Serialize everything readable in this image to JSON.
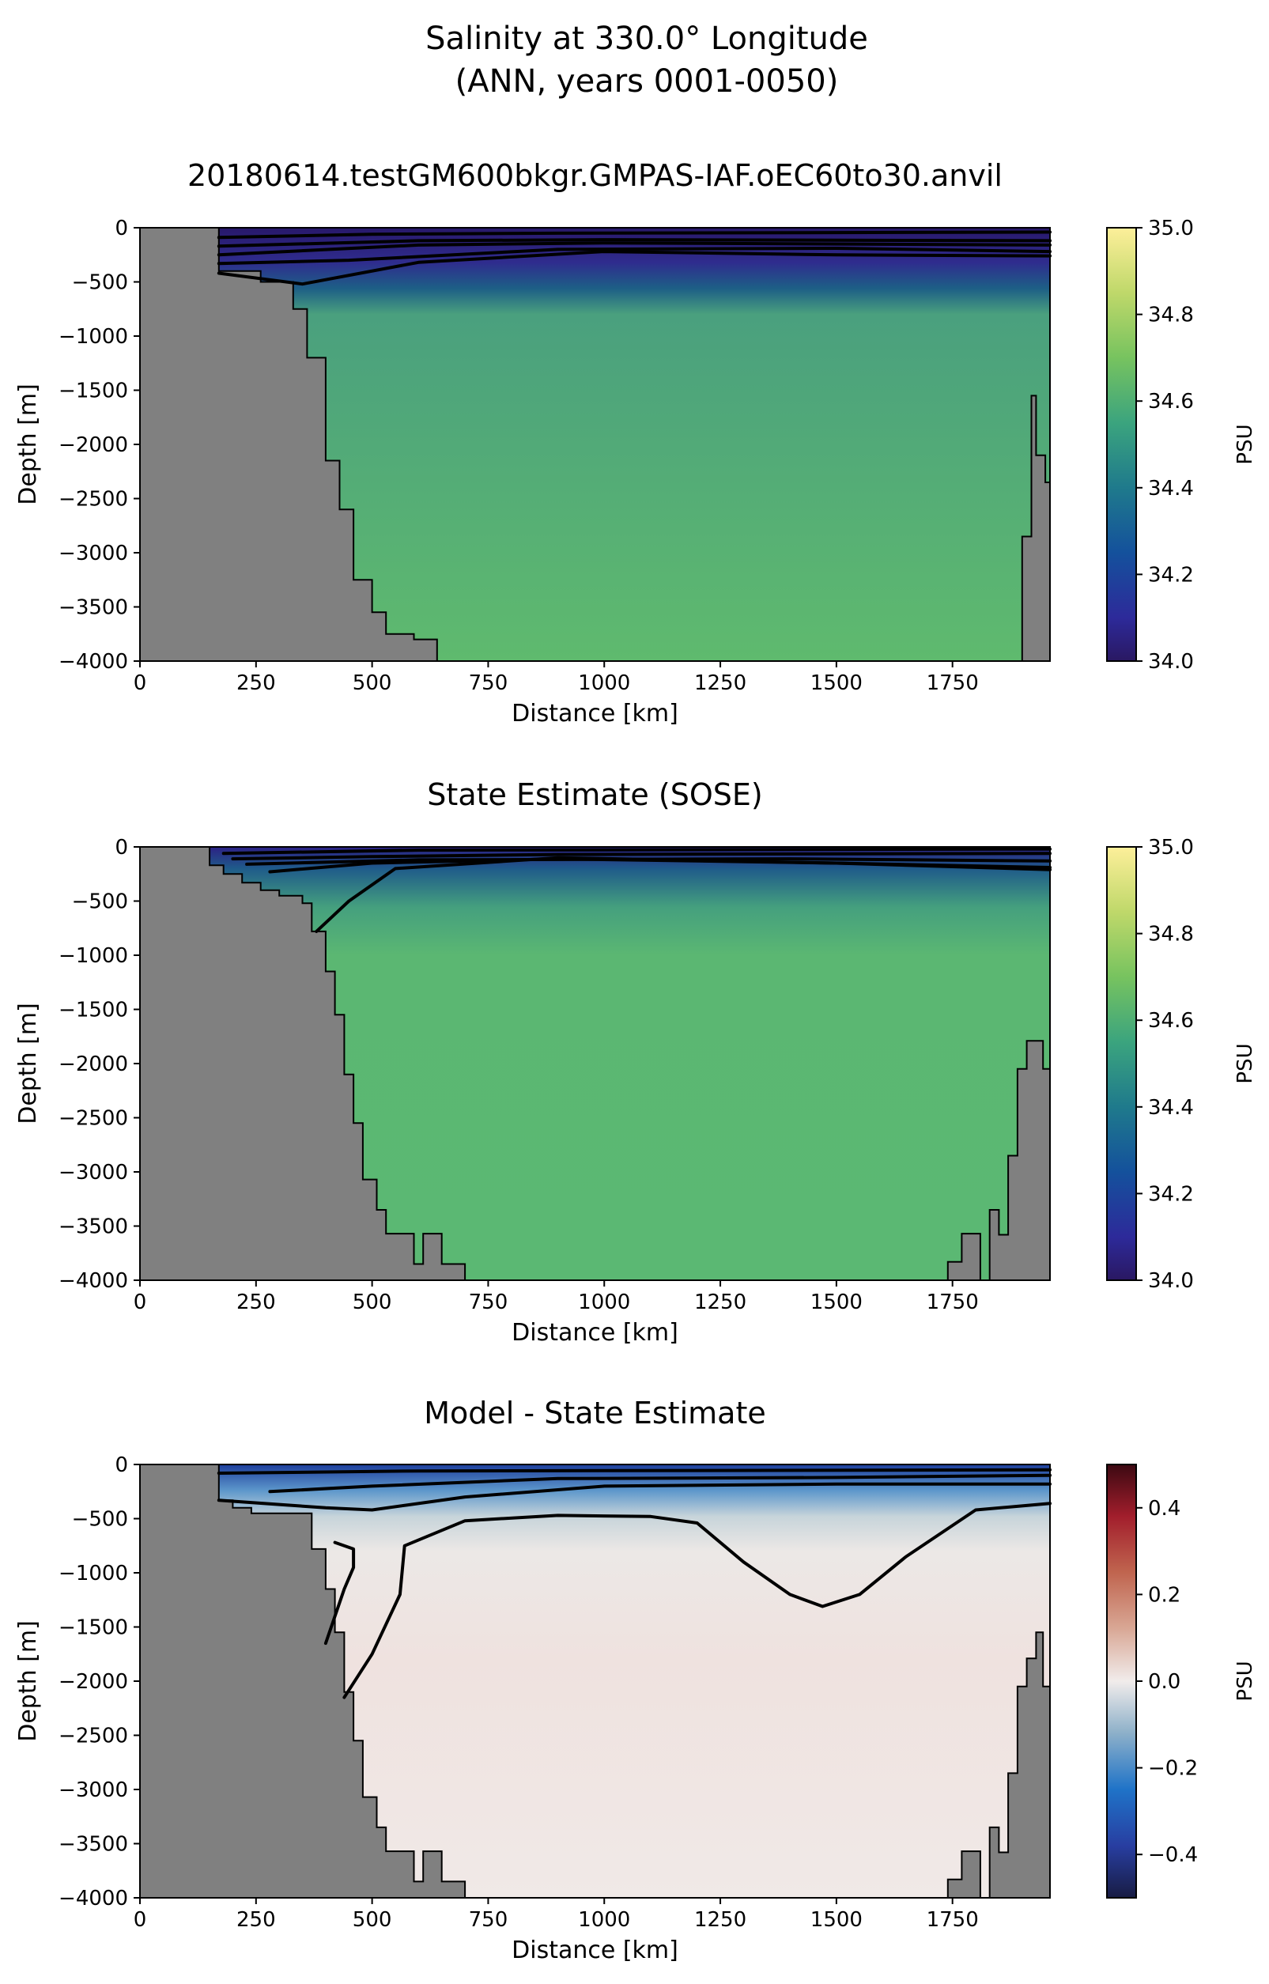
{
  "figure": {
    "title_line1": "Salinity at 330.0° Longitude",
    "title_line2": "(ANN, years 0001-0050)"
  },
  "chart_data": [
    {
      "type": "heatmap",
      "title": "20180614.testGM600bkgr.GMPAS-IAF.oEC60to30.anvil",
      "xlabel": "Distance [km]",
      "ylabel": "Depth [m]",
      "xlim": [
        0,
        1960
      ],
      "ylim": [
        -4000,
        0
      ],
      "xticks": [
        0,
        250,
        500,
        750,
        1000,
        1250,
        1500,
        1750
      ],
      "yticks": [
        0,
        -500,
        -1000,
        -1500,
        -2000,
        -2500,
        -3000,
        -3500,
        -4000
      ],
      "colorbar": {
        "label": "PSU",
        "range": [
          34.0,
          35.0
        ],
        "ticks": [
          34.0,
          34.2,
          34.4,
          34.6,
          34.8,
          35.0
        ],
        "colormap": "haline"
      },
      "land_color": "#808080",
      "interior_value": 34.66,
      "land_left": [
        [
          0,
          0
        ],
        [
          170,
          0
        ],
        [
          170,
          -400
        ],
        [
          260,
          -400
        ],
        [
          260,
          -500
        ],
        [
          330,
          -500
        ],
        [
          330,
          -750
        ],
        [
          360,
          -750
        ],
        [
          360,
          -1200
        ],
        [
          400,
          -1200
        ],
        [
          400,
          -2150
        ],
        [
          430,
          -2150
        ],
        [
          430,
          -2600
        ],
        [
          460,
          -2600
        ],
        [
          460,
          -3250
        ],
        [
          500,
          -3250
        ],
        [
          500,
          -3550
        ],
        [
          530,
          -3550
        ],
        [
          530,
          -3750
        ],
        [
          590,
          -3750
        ],
        [
          590,
          -3800
        ],
        [
          640,
          -3800
        ],
        [
          640,
          -4000
        ],
        [
          0,
          -4000
        ]
      ],
      "land_right": [
        [
          1960,
          -4000
        ],
        [
          1960,
          -2350
        ],
        [
          1950,
          -2350
        ],
        [
          1950,
          -2100
        ],
        [
          1930,
          -2100
        ],
        [
          1930,
          -1550
        ],
        [
          1920,
          -1550
        ],
        [
          1920,
          -2850
        ],
        [
          1900,
          -2850
        ],
        [
          1900,
          -4000
        ]
      ],
      "contours": [
        [
          [
            170,
            -90
          ],
          [
            500,
            -60
          ],
          [
            900,
            -50
          ],
          [
            1960,
            -40
          ]
        ],
        [
          [
            170,
            -170
          ],
          [
            600,
            -120
          ],
          [
            1000,
            -110
          ],
          [
            1960,
            -120
          ]
        ],
        [
          [
            170,
            -250
          ],
          [
            600,
            -160
          ],
          [
            1000,
            -140
          ],
          [
            1960,
            -160
          ]
        ],
        [
          [
            170,
            -330
          ],
          [
            450,
            -300
          ],
          [
            900,
            -200
          ],
          [
            1500,
            -190
          ],
          [
            1960,
            -220
          ]
        ],
        [
          [
            170,
            -420
          ],
          [
            350,
            -520
          ],
          [
            600,
            -320
          ],
          [
            1000,
            -220
          ],
          [
            1500,
            -250
          ],
          [
            1960,
            -260
          ]
        ]
      ]
    },
    {
      "type": "heatmap",
      "title": "State Estimate (SOSE)",
      "xlabel": "Distance [km]",
      "ylabel": "Depth [m]",
      "xlim": [
        0,
        1960
      ],
      "ylim": [
        -4000,
        0
      ],
      "xticks": [
        0,
        250,
        500,
        750,
        1000,
        1250,
        1500,
        1750
      ],
      "yticks": [
        0,
        -500,
        -1000,
        -1500,
        -2000,
        -2500,
        -3000,
        -3500,
        -4000
      ],
      "colorbar": {
        "label": "PSU",
        "range": [
          34.0,
          35.0
        ],
        "ticks": [
          34.0,
          34.2,
          34.4,
          34.6,
          34.8,
          35.0
        ],
        "colormap": "haline"
      },
      "land_color": "#808080",
      "interior_value": 34.65,
      "land_left": [
        [
          0,
          0
        ],
        [
          150,
          0
        ],
        [
          150,
          -170
        ],
        [
          180,
          -170
        ],
        [
          180,
          -250
        ],
        [
          220,
          -250
        ],
        [
          220,
          -330
        ],
        [
          260,
          -330
        ],
        [
          260,
          -400
        ],
        [
          300,
          -400
        ],
        [
          300,
          -450
        ],
        [
          350,
          -450
        ],
        [
          350,
          -520
        ],
        [
          370,
          -520
        ],
        [
          370,
          -780
        ],
        [
          400,
          -780
        ],
        [
          400,
          -1150
        ],
        [
          420,
          -1150
        ],
        [
          420,
          -1550
        ],
        [
          440,
          -1550
        ],
        [
          440,
          -2100
        ],
        [
          460,
          -2100
        ],
        [
          460,
          -2550
        ],
        [
          480,
          -2550
        ],
        [
          480,
          -3070
        ],
        [
          510,
          -3070
        ],
        [
          510,
          -3350
        ],
        [
          530,
          -3350
        ],
        [
          530,
          -3570
        ],
        [
          590,
          -3570
        ],
        [
          590,
          -3850
        ],
        [
          610,
          -3850
        ],
        [
          610,
          -3570
        ],
        [
          650,
          -3570
        ],
        [
          650,
          -3850
        ],
        [
          700,
          -3850
        ],
        [
          700,
          -4000
        ],
        [
          0,
          -4000
        ]
      ],
      "land_right": [
        [
          1960,
          -4000
        ],
        [
          1960,
          -2050
        ],
        [
          1945,
          -2050
        ],
        [
          1945,
          -1790
        ],
        [
          1910,
          -1790
        ],
        [
          1910,
          -2050
        ],
        [
          1890,
          -2050
        ],
        [
          1890,
          -2850
        ],
        [
          1870,
          -2850
        ],
        [
          1870,
          -3580
        ],
        [
          1850,
          -3580
        ],
        [
          1850,
          -3350
        ],
        [
          1830,
          -3350
        ],
        [
          1830,
          -4000
        ],
        [
          1810,
          -4000
        ],
        [
          1810,
          -3570
        ],
        [
          1770,
          -3570
        ],
        [
          1770,
          -3830
        ],
        [
          1740,
          -3830
        ],
        [
          1740,
          -4000
        ]
      ],
      "contours": [
        [
          [
            180,
            -60
          ],
          [
            600,
            -30
          ],
          [
            1960,
            -20
          ]
        ],
        [
          [
            200,
            -110
          ],
          [
            500,
            -90
          ],
          [
            900,
            -70
          ],
          [
            1960,
            -60
          ]
        ],
        [
          [
            230,
            -160
          ],
          [
            600,
            -120
          ],
          [
            1400,
            -110
          ],
          [
            1960,
            -130
          ]
        ],
        [
          [
            280,
            -230
          ],
          [
            500,
            -150
          ],
          [
            900,
            -110
          ],
          [
            1500,
            -150
          ],
          [
            1960,
            -190
          ]
        ],
        [
          [
            380,
            -780
          ],
          [
            450,
            -500
          ],
          [
            550,
            -200
          ],
          [
            900,
            -100
          ],
          [
            1500,
            -150
          ],
          [
            1960,
            -210
          ]
        ]
      ]
    },
    {
      "type": "heatmap",
      "title": "Model - State Estimate",
      "xlabel": "Distance [km]",
      "ylabel": "Depth [m]",
      "xlim": [
        0,
        1960
      ],
      "ylim": [
        -4000,
        0
      ],
      "xticks": [
        0,
        250,
        500,
        750,
        1000,
        1250,
        1500,
        1750
      ],
      "yticks": [
        0,
        -500,
        -1000,
        -1500,
        -2000,
        -2500,
        -3000,
        -3500,
        -4000
      ],
      "colorbar": {
        "label": "PSU",
        "range": [
          -0.5,
          0.5
        ],
        "ticks": [
          -0.4,
          -0.2,
          0.0,
          0.2,
          0.4
        ],
        "colormap": "balance"
      },
      "land_color": "#808080",
      "interior_value": 0.02,
      "land_left": [
        [
          0,
          0
        ],
        [
          170,
          0
        ],
        [
          170,
          -330
        ],
        [
          200,
          -330
        ],
        [
          200,
          -400
        ],
        [
          240,
          -400
        ],
        [
          240,
          -450
        ],
        [
          370,
          -450
        ],
        [
          370,
          -780
        ],
        [
          400,
          -780
        ],
        [
          400,
          -1150
        ],
        [
          420,
          -1150
        ],
        [
          420,
          -1550
        ],
        [
          440,
          -1550
        ],
        [
          440,
          -2100
        ],
        [
          460,
          -2100
        ],
        [
          460,
          -2550
        ],
        [
          480,
          -2550
        ],
        [
          480,
          -3070
        ],
        [
          510,
          -3070
        ],
        [
          510,
          -3350
        ],
        [
          530,
          -3350
        ],
        [
          530,
          -3570
        ],
        [
          590,
          -3570
        ],
        [
          590,
          -3850
        ],
        [
          610,
          -3850
        ],
        [
          610,
          -3570
        ],
        [
          650,
          -3570
        ],
        [
          650,
          -3850
        ],
        [
          700,
          -3850
        ],
        [
          700,
          -4000
        ],
        [
          0,
          -4000
        ]
      ],
      "land_right": [
        [
          1960,
          -4000
        ],
        [
          1960,
          -2050
        ],
        [
          1945,
          -2050
        ],
        [
          1945,
          -1550
        ],
        [
          1930,
          -1550
        ],
        [
          1930,
          -1790
        ],
        [
          1910,
          -1790
        ],
        [
          1910,
          -2050
        ],
        [
          1890,
          -2050
        ],
        [
          1890,
          -2850
        ],
        [
          1870,
          -2850
        ],
        [
          1870,
          -3580
        ],
        [
          1850,
          -3580
        ],
        [
          1850,
          -3350
        ],
        [
          1830,
          -3350
        ],
        [
          1830,
          -4000
        ],
        [
          1810,
          -4000
        ],
        [
          1810,
          -3570
        ],
        [
          1770,
          -3570
        ],
        [
          1770,
          -3830
        ],
        [
          1740,
          -3830
        ],
        [
          1740,
          -4000
        ]
      ],
      "contours": [
        [
          [
            170,
            -80
          ],
          [
            600,
            -60
          ],
          [
            1960,
            -50
          ]
        ],
        [
          [
            280,
            -250
          ],
          [
            500,
            -200
          ],
          [
            900,
            -130
          ],
          [
            1500,
            -120
          ],
          [
            1960,
            -100
          ]
        ],
        [
          [
            170,
            -330
          ],
          [
            400,
            -400
          ],
          [
            500,
            -420
          ],
          [
            700,
            -300
          ],
          [
            1000,
            -200
          ],
          [
            1500,
            -180
          ],
          [
            1960,
            -180
          ]
        ],
        [
          [
            440,
            -2150
          ],
          [
            500,
            -1750
          ],
          [
            560,
            -1200
          ],
          [
            570,
            -750
          ],
          [
            700,
            -520
          ],
          [
            900,
            -470
          ],
          [
            1100,
            -480
          ],
          [
            1200,
            -540
          ],
          [
            1300,
            -900
          ],
          [
            1400,
            -1200
          ],
          [
            1470,
            -1310
          ],
          [
            1550,
            -1200
          ],
          [
            1650,
            -850
          ],
          [
            1800,
            -420
          ],
          [
            1960,
            -360
          ]
        ],
        [
          [
            400,
            -1650
          ],
          [
            440,
            -1150
          ],
          [
            460,
            -950
          ],
          [
            460,
            -780
          ],
          [
            420,
            -720
          ]
        ]
      ]
    }
  ]
}
